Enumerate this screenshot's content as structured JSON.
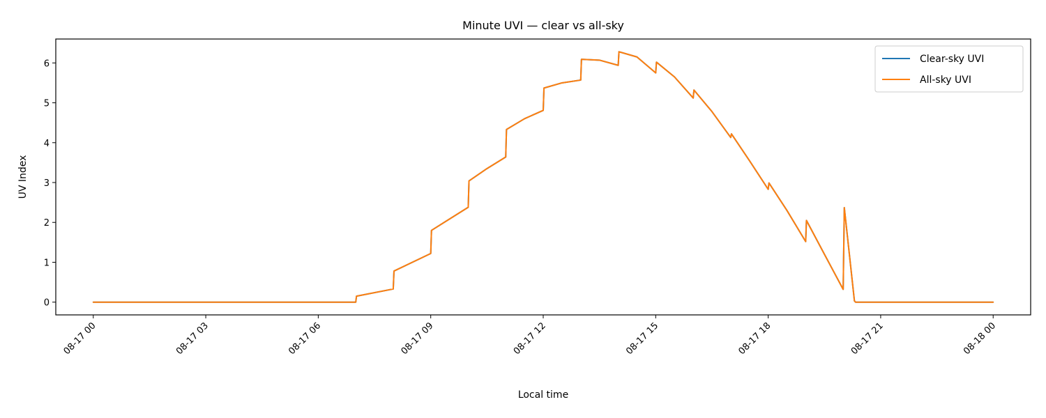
{
  "chart_data": {
    "type": "line",
    "title": "Minute UVI — clear vs all-sky",
    "xlabel": "Local time",
    "ylabel": "UV Index",
    "xlim_hours": [
      -1.0,
      25.0
    ],
    "ylim": [
      -0.32,
      6.6
    ],
    "x_ticks": [
      {
        "hour": 0,
        "label": "08-17 00"
      },
      {
        "hour": 3,
        "label": "08-17 03"
      },
      {
        "hour": 6,
        "label": "08-17 06"
      },
      {
        "hour": 9,
        "label": "08-17 09"
      },
      {
        "hour": 12,
        "label": "08-17 12"
      },
      {
        "hour": 15,
        "label": "08-17 15"
      },
      {
        "hour": 18,
        "label": "08-17 18"
      },
      {
        "hour": 21,
        "label": "08-17 21"
      },
      {
        "hour": 24,
        "label": "08-18 00"
      }
    ],
    "y_ticks": [
      0,
      1,
      2,
      3,
      4,
      5,
      6
    ],
    "grid": false,
    "legend_position": "top-right",
    "series": [
      {
        "name": "Clear-sky UVI",
        "color": "#1f77b4",
        "points": [
          [
            0,
            0
          ],
          [
            7.0,
            0
          ],
          [
            7.02,
            0.15
          ],
          [
            8.0,
            0.33
          ],
          [
            8.02,
            0.78
          ],
          [
            9.0,
            1.22
          ],
          [
            9.02,
            1.8
          ],
          [
            10.0,
            2.38
          ],
          [
            10.02,
            3.04
          ],
          [
            10.5,
            3.35
          ],
          [
            11.0,
            3.64
          ],
          [
            11.02,
            4.33
          ],
          [
            11.5,
            4.6
          ],
          [
            12.0,
            4.81
          ],
          [
            12.02,
            5.37
          ],
          [
            12.5,
            5.5
          ],
          [
            13.0,
            5.57
          ],
          [
            13.02,
            6.09
          ],
          [
            13.5,
            6.07
          ],
          [
            14.0,
            5.94
          ],
          [
            14.02,
            6.28
          ],
          [
            14.5,
            6.15
          ],
          [
            15.0,
            5.75
          ],
          [
            15.02,
            6.02
          ],
          [
            15.5,
            5.65
          ],
          [
            16.0,
            5.12
          ],
          [
            16.02,
            5.32
          ],
          [
            16.5,
            4.78
          ],
          [
            17.0,
            4.13
          ],
          [
            17.02,
            4.22
          ],
          [
            17.5,
            3.55
          ],
          [
            18.0,
            2.83
          ],
          [
            18.02,
            2.99
          ],
          [
            18.5,
            2.3
          ],
          [
            19.0,
            1.52
          ],
          [
            19.02,
            2.05
          ],
          [
            19.5,
            1.2
          ],
          [
            20.0,
            0.32
          ],
          [
            20.03,
            2.37
          ],
          [
            20.3,
            0.03
          ],
          [
            20.33,
            0
          ],
          [
            24,
            0
          ]
        ]
      },
      {
        "name": "All-sky UVI",
        "color": "#ff7f0e",
        "points": [
          [
            0,
            0
          ],
          [
            7.0,
            0
          ],
          [
            7.02,
            0.15
          ],
          [
            8.0,
            0.33
          ],
          [
            8.02,
            0.78
          ],
          [
            9.0,
            1.22
          ],
          [
            9.02,
            1.8
          ],
          [
            10.0,
            2.38
          ],
          [
            10.02,
            3.04
          ],
          [
            10.5,
            3.35
          ],
          [
            11.0,
            3.64
          ],
          [
            11.02,
            4.33
          ],
          [
            11.5,
            4.6
          ],
          [
            12.0,
            4.81
          ],
          [
            12.02,
            5.37
          ],
          [
            12.5,
            5.5
          ],
          [
            13.0,
            5.57
          ],
          [
            13.02,
            6.09
          ],
          [
            13.5,
            6.07
          ],
          [
            14.0,
            5.94
          ],
          [
            14.02,
            6.28
          ],
          [
            14.5,
            6.15
          ],
          [
            15.0,
            5.75
          ],
          [
            15.02,
            6.02
          ],
          [
            15.5,
            5.65
          ],
          [
            16.0,
            5.12
          ],
          [
            16.02,
            5.32
          ],
          [
            16.5,
            4.78
          ],
          [
            17.0,
            4.13
          ],
          [
            17.02,
            4.22
          ],
          [
            17.5,
            3.55
          ],
          [
            18.0,
            2.83
          ],
          [
            18.02,
            2.99
          ],
          [
            18.5,
            2.3
          ],
          [
            19.0,
            1.52
          ],
          [
            19.02,
            2.05
          ],
          [
            19.5,
            1.2
          ],
          [
            20.0,
            0.32
          ],
          [
            20.03,
            2.37
          ],
          [
            20.3,
            0.03
          ],
          [
            20.33,
            0
          ],
          [
            24,
            0
          ]
        ]
      }
    ]
  }
}
